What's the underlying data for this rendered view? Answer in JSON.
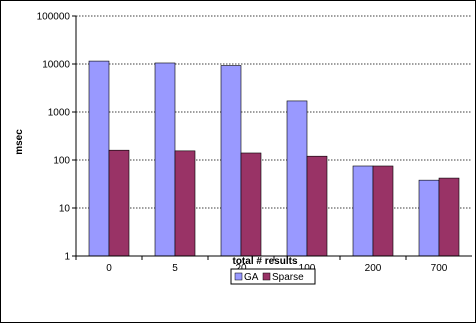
{
  "chart_data": {
    "type": "bar",
    "categories": [
      "0",
      "5",
      "20",
      "100",
      "200",
      "700"
    ],
    "series": [
      {
        "name": "GA",
        "values": [
          11500,
          10500,
          9300,
          1700,
          75,
          38
        ],
        "color": "#9999ff"
      },
      {
        "name": "Sparse",
        "values": [
          160,
          155,
          140,
          120,
          75,
          42
        ],
        "color": "#993366"
      }
    ],
    "title": "",
    "xlabel": "total # results",
    "ylabel": "msec",
    "y_scale": "log",
    "ylim": [
      1,
      100000
    ],
    "y_ticks": [
      1,
      10,
      100,
      1000,
      10000,
      100000
    ],
    "y_tick_labels": [
      "1",
      "10",
      "100",
      "1000",
      "10000",
      "100000"
    ],
    "grid": "horizontal dotted",
    "legend_position": "bottom"
  }
}
